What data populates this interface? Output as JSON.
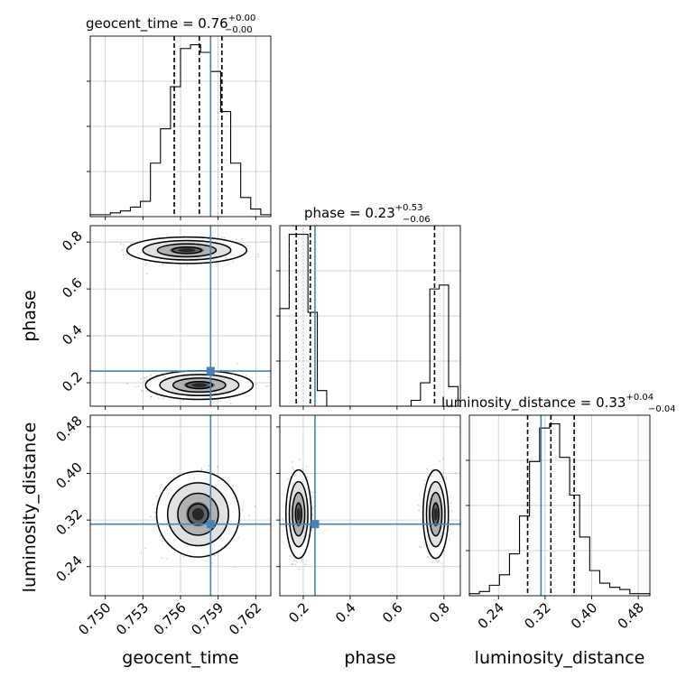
{
  "chart_data": {
    "type": "corner",
    "parameters": [
      "geocent_time",
      "phase",
      "luminosity_distance"
    ],
    "truths": {
      "geocent_time": 0.7584,
      "phase": 0.25,
      "luminosity_distance": 0.313
    },
    "titles": {
      "geocent_time": {
        "name": "geocent_time",
        "value": "0.76",
        "plus": "+0.00",
        "minus": "−0.00"
      },
      "phase": {
        "name": "phase",
        "value": "0.23",
        "plus": "+0.53",
        "minus": "−0.06"
      },
      "luminosity_distance": {
        "name": "luminosity_distance",
        "value": "0.33",
        "plus": "+0.04",
        "minus": "−0.04"
      }
    },
    "axes": {
      "geocent_time": {
        "label": "geocent_time",
        "range": [
          0.7488,
          0.7632
        ],
        "ticks": [
          0.75,
          0.753,
          0.756,
          0.759,
          0.762
        ],
        "tick_labels": [
          "0.750",
          "0.753",
          "0.756",
          "0.759",
          "0.762"
        ]
      },
      "phase": {
        "label": "phase",
        "range": [
          0.1,
          0.87
        ],
        "ticks": [
          0.2,
          0.4,
          0.6,
          0.8
        ],
        "tick_labels": [
          "0.2",
          "0.4",
          "0.6",
          "0.8"
        ]
      },
      "luminosity_distance": {
        "label": "luminosity_distance",
        "range": [
          0.19,
          0.5
        ],
        "ticks": [
          0.24,
          0.32,
          0.4,
          0.48
        ],
        "tick_labels": [
          "0.24",
          "0.32",
          "0.40",
          "0.48"
        ]
      }
    },
    "histograms": {
      "geocent_time": {
        "quantiles": [
          0.7555,
          0.7575,
          0.7593
        ],
        "bin_edges": [
          0.7488,
          0.7496,
          0.7504,
          0.7512,
          0.752,
          0.7528,
          0.7536,
          0.7544,
          0.7552,
          0.756,
          0.7568,
          0.7576,
          0.7584,
          0.7592,
          0.76,
          0.7608,
          0.7616,
          0.7624,
          0.7632
        ],
        "counts": [
          1,
          1,
          2,
          3,
          5,
          8,
          28,
          46,
          68,
          88,
          90,
          86,
          76,
          55,
          28,
          10,
          4,
          1
        ]
      },
      "phase": {
        "quantiles": [
          0.17,
          0.23,
          0.76
        ],
        "bin_edges": [
          0.1,
          0.14,
          0.18,
          0.22,
          0.26,
          0.3,
          0.34,
          0.38,
          0.42,
          0.46,
          0.5,
          0.54,
          0.58,
          0.62,
          0.66,
          0.7,
          0.74,
          0.78,
          0.82,
          0.86
        ],
        "counts": [
          50,
          88,
          88,
          48,
          8,
          0,
          0,
          0,
          0,
          0,
          0,
          0,
          0,
          0,
          3,
          12,
          60,
          62,
          10
        ]
      },
      "luminosity_distance": {
        "quantiles": [
          0.29,
          0.33,
          0.37
        ],
        "bin_edges": [
          0.19,
          0.2072,
          0.2244,
          0.2417,
          0.2589,
          0.2761,
          0.2933,
          0.3106,
          0.3278,
          0.345,
          0.3622,
          0.3794,
          0.3967,
          0.4139,
          0.4311,
          0.4483,
          0.4656,
          0.4828,
          0.5
        ],
        "counts": [
          1,
          2,
          5,
          10,
          20,
          38,
          64,
          80,
          82,
          66,
          48,
          28,
          12,
          6,
          4,
          3,
          1,
          1
        ]
      }
    },
    "pairs": [
      {
        "x": "geocent_time",
        "y": "phase",
        "modes": [
          {
            "cx": 0.7565,
            "cy": 0.765,
            "sx": 0.00195,
            "sy": 0.023
          },
          {
            "cx": 0.7575,
            "cy": 0.19,
            "sx": 0.00175,
            "sy": 0.025
          }
        ]
      },
      {
        "x": "geocent_time",
        "y": "luminosity_distance",
        "modes": [
          {
            "cx": 0.7574,
            "cy": 0.33,
            "sx": 0.00135,
            "sy": 0.03
          }
        ]
      },
      {
        "x": "phase",
        "y": "luminosity_distance",
        "modes": [
          {
            "cx": 0.18,
            "cy": 0.33,
            "sx": 0.022,
            "sy": 0.031
          },
          {
            "cx": 0.765,
            "cy": 0.33,
            "sx": 0.022,
            "sy": 0.031
          }
        ]
      }
    ],
    "colors": {
      "truth": "#4682b4",
      "line": "#000000",
      "grid": "#c8c8c8"
    },
    "grid": true
  }
}
